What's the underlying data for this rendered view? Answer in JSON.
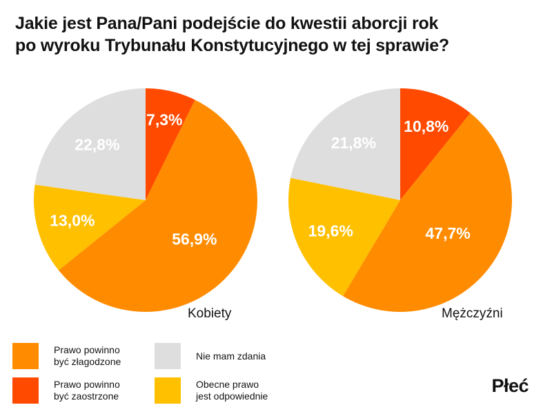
{
  "title_lines": [
    "Jakie jest Pana/Pani podejście do kwestii aborcji rok",
    "po wyroku Trybunału Konstytucyjnego w tej sprawie?"
  ],
  "brand": "Płeć",
  "legend": [
    {
      "label": "Prawo powinno\nbyć złagodzone",
      "color": "#FF8C00"
    },
    {
      "label": "Nie mam zdania",
      "color": "#DEDEDE"
    },
    {
      "label": "Prawo powinno\nbyć zaostrzone",
      "color": "#FF4A00"
    },
    {
      "label": "Obecne prawo\njest odpowiednie",
      "color": "#FFC000"
    }
  ],
  "chart_data": [
    {
      "type": "pie",
      "title": "Kobiety",
      "categories": [
        "Prawo powinno być zaostrzone",
        "Prawo powinno być złagodzone",
        "Obecne prawo jest odpowiednie",
        "Nie mam zdania"
      ],
      "values": [
        7.3,
        56.9,
        13.0,
        22.8
      ],
      "labels": [
        "7,3%",
        "56,9%",
        "13,0%",
        "22,8%"
      ],
      "colors": [
        "#FF4A00",
        "#FF8C00",
        "#FFC000",
        "#DEDEDE"
      ]
    },
    {
      "type": "pie",
      "title": "Mężczyźni",
      "categories": [
        "Prawo powinno być zaostrzone",
        "Prawo powinno być złagodzone",
        "Obecne prawo jest odpowiednie",
        "Nie mam zdania"
      ],
      "values": [
        10.8,
        47.7,
        19.6,
        21.8
      ],
      "labels": [
        "10,8%",
        "47,7%",
        "19,6%",
        "21,8%"
      ],
      "colors": [
        "#FF4A00",
        "#FF8C00",
        "#FFC000",
        "#DEDEDE"
      ]
    }
  ]
}
